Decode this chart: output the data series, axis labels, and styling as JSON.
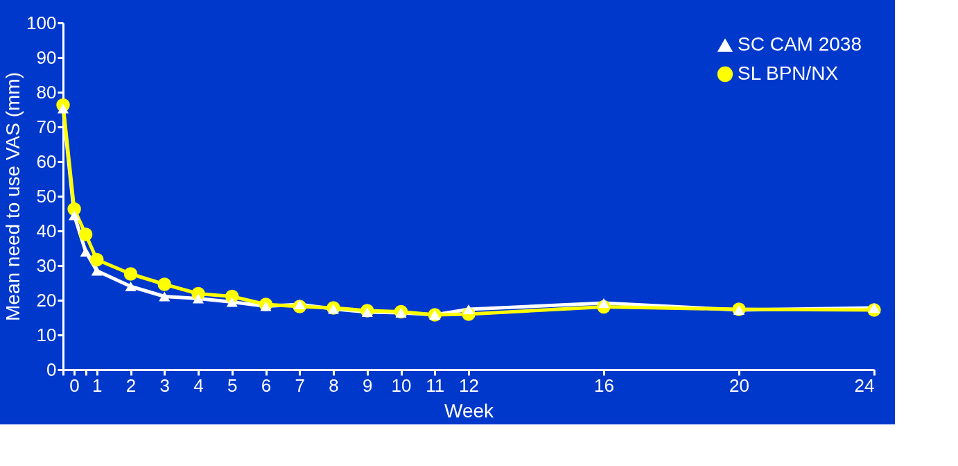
{
  "chart_data": {
    "type": "line",
    "xlabel": "Week",
    "ylabel": "Mean need to use VAS (mm)",
    "x": [
      0,
      0.33,
      0.67,
      1,
      2,
      3,
      4,
      5,
      6,
      7,
      8,
      9,
      10,
      11,
      12,
      16,
      20,
      24
    ],
    "series": [
      {
        "name": "SC CAM 2038",
        "color": "#ffffff",
        "marker": "triangle",
        "values": [
          75.3,
          44.5,
          34,
          28.5,
          24,
          21.1,
          20.5,
          19.5,
          18.3,
          18.8,
          17.5,
          16.6,
          16.4,
          15.8,
          17.4,
          19.2,
          17.2,
          17.8
        ]
      },
      {
        "name": "SL BPN/NX",
        "color": "#ffff00",
        "marker": "circle",
        "values": [
          76.3,
          46.3,
          39,
          31.7,
          27.6,
          24.6,
          21.9,
          21.1,
          18.8,
          18.2,
          17.8,
          17,
          16.7,
          15.8,
          16,
          18.1,
          17.4,
          17.2
        ]
      }
    ],
    "xlim": [
      0,
      24
    ],
    "xticks": [
      {
        "value": 0,
        "label": null
      },
      {
        "value": 0.33,
        "label": "0"
      },
      {
        "value": 0.67,
        "label": null
      },
      1,
      2,
      3,
      4,
      5,
      6,
      7,
      8,
      9,
      10,
      11,
      12,
      16,
      20,
      24
    ],
    "ylim": [
      0,
      100
    ],
    "yticks": [
      0,
      10,
      20,
      30,
      40,
      50,
      60,
      70,
      80,
      90,
      100
    ],
    "grid": false,
    "legend": "top right",
    "line_style": "solid"
  }
}
